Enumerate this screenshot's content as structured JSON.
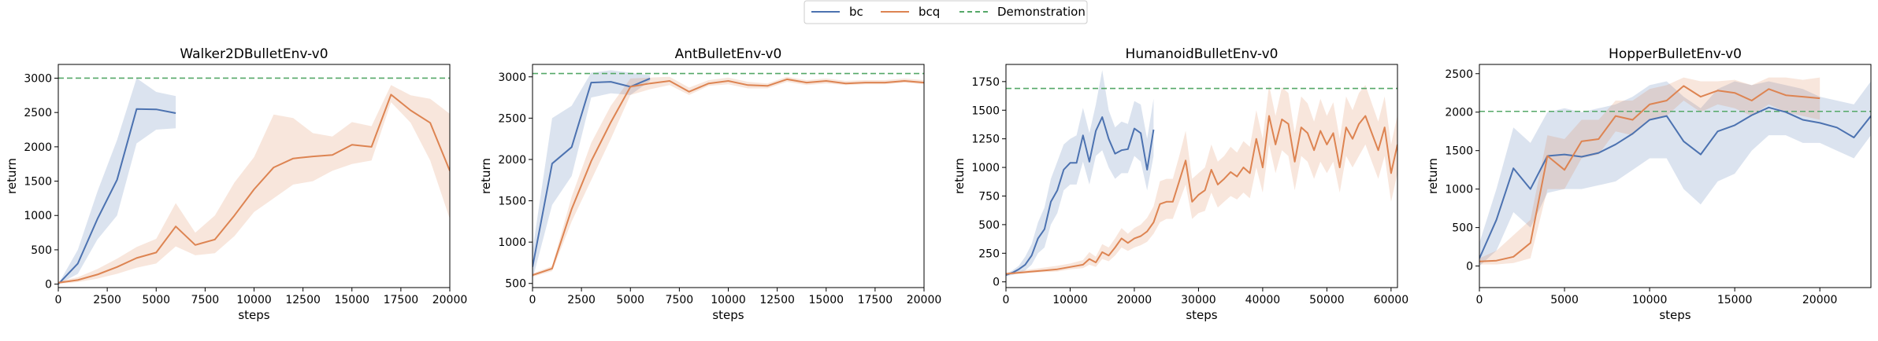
{
  "legend": {
    "placement": "top-center",
    "entries": [
      {
        "name": "bc",
        "color": "#4c72b0",
        "style": "solid"
      },
      {
        "name": "bcq",
        "color": "#dd8452",
        "style": "solid"
      },
      {
        "name": "Demonstration",
        "color": "#55a868",
        "style": "dashed"
      }
    ]
  },
  "chart_data": [
    {
      "type": "line",
      "title": "Walker2DBulletEnv-v0",
      "xlabel": "steps",
      "ylabel": "return",
      "xlim": [
        0,
        20000
      ],
      "ylim": [
        -50,
        3200
      ],
      "xticks": [
        0,
        2500,
        5000,
        7500,
        10000,
        12500,
        15000,
        17500,
        20000
      ],
      "yticks": [
        0,
        500,
        1000,
        1500,
        2000,
        2500,
        3000
      ],
      "grid": false,
      "demonstration": 3000,
      "series": [
        {
          "name": "bc",
          "x": [
            0,
            1000,
            2000,
            3000,
            4000,
            5000,
            6000
          ],
          "y": [
            0,
            300,
            950,
            1520,
            2550,
            2545,
            2490
          ],
          "lower": [
            0,
            150,
            650,
            1000,
            2050,
            2250,
            2270
          ],
          "upper": [
            0,
            500,
            1350,
            2100,
            3000,
            2800,
            2740
          ]
        },
        {
          "name": "bcq",
          "x": [
            0,
            1000,
            2000,
            3000,
            4000,
            5000,
            6000,
            7000,
            8000,
            9000,
            10000,
            11000,
            12000,
            13000,
            14000,
            15000,
            16000,
            17000,
            18000,
            19000,
            20000
          ],
          "y": [
            20,
            60,
            140,
            250,
            380,
            460,
            840,
            570,
            650,
            1000,
            1380,
            1700,
            1830,
            1860,
            1880,
            2030,
            2000,
            2760,
            2530,
            2350,
            1650
          ],
          "lower": [
            5,
            30,
            80,
            150,
            240,
            300,
            550,
            420,
            450,
            700,
            1050,
            1250,
            1450,
            1500,
            1650,
            1750,
            1800,
            2650,
            2350,
            1800,
            950
          ],
          "upper": [
            40,
            100,
            220,
            370,
            540,
            660,
            1180,
            750,
            1000,
            1480,
            1850,
            2470,
            2420,
            2200,
            2150,
            2360,
            2300,
            2900,
            2750,
            2700,
            2480
          ]
        }
      ]
    },
    {
      "type": "line",
      "title": "AntBulletEnv-v0",
      "xlabel": "steps",
      "ylabel": "return",
      "xlim": [
        0,
        20000
      ],
      "ylim": [
        450,
        3150
      ],
      "xticks": [
        0,
        2500,
        5000,
        7500,
        10000,
        12500,
        15000,
        17500,
        20000
      ],
      "yticks": [
        500,
        1000,
        1500,
        2000,
        2500,
        3000
      ],
      "grid": false,
      "demonstration": 3040,
      "series": [
        {
          "name": "bc",
          "x": [
            0,
            1000,
            2000,
            3000,
            4000,
            5000,
            6000
          ],
          "y": [
            700,
            1950,
            2150,
            2930,
            2940,
            2880,
            2980
          ],
          "lower": [
            550,
            1450,
            1800,
            2750,
            2800,
            2780,
            2950
          ],
          "upper": [
            900,
            2500,
            2650,
            3050,
            3080,
            3050,
            3020
          ]
        },
        {
          "name": "bcq",
          "x": [
            0,
            1000,
            2000,
            3000,
            4000,
            5000,
            6000,
            7000,
            8000,
            9000,
            10000,
            11000,
            12000,
            13000,
            14000,
            15000,
            16000,
            17000,
            18000,
            19000,
            20000
          ],
          "y": [
            600,
            680,
            1400,
            1980,
            2450,
            2880,
            2920,
            2950,
            2820,
            2920,
            2950,
            2900,
            2890,
            2970,
            2930,
            2950,
            2920,
            2930,
            2930,
            2950,
            2930
          ],
          "lower": [
            580,
            650,
            1250,
            1750,
            2250,
            2780,
            2850,
            2900,
            2780,
            2890,
            2910,
            2860,
            2860,
            2940,
            2900,
            2920,
            2900,
            2910,
            2910,
            2930,
            2910
          ],
          "upper": [
            620,
            710,
            1550,
            2200,
            2650,
            2980,
            2990,
            3000,
            2870,
            2960,
            2990,
            2940,
            2920,
            3000,
            2960,
            2980,
            2950,
            2960,
            2960,
            2980,
            2960
          ]
        }
      ]
    },
    {
      "type": "line",
      "title": "HumanoidBulletEnv-v0",
      "xlabel": "steps",
      "ylabel": "return",
      "xlim": [
        0,
        61000
      ],
      "ylim": [
        -50,
        1900
      ],
      "xticks": [
        0,
        10000,
        20000,
        30000,
        40000,
        50000,
        60000
      ],
      "yticks": [
        0,
        250,
        500,
        750,
        1000,
        1250,
        1500,
        1750
      ],
      "grid": false,
      "demonstration": 1690,
      "series": [
        {
          "name": "bc",
          "x": [
            0,
            1000,
            2000,
            3000,
            4000,
            5000,
            6000,
            7000,
            8000,
            9000,
            10000,
            11000,
            12000,
            13000,
            14000,
            15000,
            16000,
            17000,
            18000,
            19000,
            20000,
            21000,
            22000,
            23000
          ],
          "y": [
            60,
            80,
            110,
            150,
            230,
            380,
            460,
            700,
            800,
            980,
            1040,
            1040,
            1280,
            1050,
            1320,
            1440,
            1250,
            1120,
            1150,
            1160,
            1340,
            1300,
            980,
            1330
          ],
          "lower": [
            50,
            60,
            80,
            100,
            150,
            250,
            300,
            500,
            600,
            800,
            850,
            850,
            1050,
            850,
            1100,
            1150,
            1000,
            900,
            950,
            950,
            1100,
            1050,
            800,
            1100
          ],
          "upper": [
            70,
            100,
            140,
            220,
            330,
            520,
            650,
            900,
            1050,
            1200,
            1250,
            1280,
            1520,
            1300,
            1550,
            1850,
            1500,
            1350,
            1400,
            1380,
            1580,
            1550,
            1250,
            1600
          ]
        },
        {
          "name": "bcq",
          "x": [
            0,
            2000,
            4000,
            6000,
            8000,
            10000,
            12000,
            13000,
            14000,
            15000,
            16000,
            17000,
            18000,
            19000,
            20000,
            21000,
            22000,
            23000,
            24000,
            25000,
            26000,
            27000,
            28000,
            29000,
            30000,
            31000,
            32000,
            33000,
            34000,
            35000,
            36000,
            37000,
            38000,
            39000,
            40000,
            41000,
            42000,
            43000,
            44000,
            45000,
            46000,
            47000,
            48000,
            49000,
            50000,
            51000,
            52000,
            53000,
            54000,
            55000,
            56000,
            57000,
            58000,
            59000,
            60000,
            61000
          ],
          "y": [
            70,
            80,
            90,
            100,
            110,
            130,
            150,
            200,
            170,
            260,
            230,
            300,
            380,
            340,
            380,
            400,
            440,
            520,
            680,
            700,
            700,
            880,
            1060,
            700,
            760,
            800,
            980,
            850,
            900,
            960,
            920,
            1000,
            950,
            1250,
            1000,
            1450,
            1200,
            1420,
            1380,
            1050,
            1350,
            1300,
            1150,
            1320,
            1200,
            1300,
            1000,
            1350,
            1250,
            1380,
            1450,
            1300,
            1150,
            1350,
            950,
            1200
          ],
          "lower": [
            60,
            70,
            80,
            85,
            90,
            110,
            120,
            150,
            130,
            200,
            180,
            230,
            300,
            270,
            300,
            320,
            350,
            420,
            520,
            550,
            550,
            700,
            850,
            550,
            600,
            620,
            780,
            650,
            700,
            750,
            720,
            780,
            730,
            1000,
            780,
            1200,
            950,
            1150,
            1100,
            800,
            1100,
            1050,
            900,
            1050,
            950,
            1050,
            780,
            1100,
            1000,
            1100,
            1200,
            1050,
            900,
            1100,
            700,
            950
          ],
          "upper": [
            80,
            95,
            110,
            125,
            140,
            160,
            190,
            260,
            220,
            330,
            300,
            380,
            470,
            420,
            470,
            500,
            560,
            660,
            880,
            900,
            900,
            1100,
            1320,
            900,
            950,
            1000,
            1200,
            1050,
            1100,
            1180,
            1130,
            1230,
            1180,
            1500,
            1250,
            1720,
            1450,
            1700,
            1650,
            1300,
            1620,
            1560,
            1400,
            1600,
            1450,
            1570,
            1250,
            1620,
            1500,
            1650,
            1720,
            1560,
            1400,
            1620,
            1200,
            1460
          ]
        }
      ]
    },
    {
      "type": "line",
      "title": "HopperBulletEnv-v0",
      "xlabel": "steps",
      "ylabel": "return",
      "xlim": [
        0,
        23000
      ],
      "ylim": [
        -280,
        2620
      ],
      "xticks": [
        0,
        5000,
        10000,
        15000,
        20000
      ],
      "yticks": [
        0,
        500,
        1000,
        1500,
        2000,
        2500
      ],
      "grid": false,
      "demonstration": 2010,
      "series": [
        {
          "name": "bc",
          "x": [
            0,
            1000,
            2000,
            3000,
            4000,
            5000,
            6000,
            7000,
            8000,
            9000,
            10000,
            11000,
            12000,
            13000,
            14000,
            15000,
            16000,
            17000,
            18000,
            19000,
            20000,
            21000,
            22000,
            23000
          ],
          "y": [
            100,
            600,
            1270,
            1000,
            1430,
            1450,
            1420,
            1470,
            1580,
            1720,
            1900,
            1950,
            1620,
            1450,
            1750,
            1830,
            1960,
            2060,
            2000,
            1900,
            1860,
            1800,
            1670,
            1950
          ],
          "lower": [
            0,
            200,
            700,
            500,
            950,
            1000,
            1000,
            1050,
            1100,
            1250,
            1400,
            1400,
            1000,
            800,
            1100,
            1200,
            1500,
            1700,
            1700,
            1600,
            1600,
            1500,
            1400,
            1700
          ],
          "upper": [
            300,
            1000,
            1800,
            1600,
            2000,
            2050,
            2000,
            2050,
            2100,
            2200,
            2350,
            2400,
            2200,
            2050,
            2300,
            2400,
            2350,
            2400,
            2350,
            2300,
            2200,
            2150,
            2100,
            2400
          ]
        },
        {
          "name": "bcq",
          "x": [
            0,
            1000,
            2000,
            3000,
            4000,
            5000,
            6000,
            7000,
            8000,
            9000,
            10000,
            11000,
            12000,
            13000,
            14000,
            15000,
            16000,
            17000,
            18000,
            19000,
            20000
          ],
          "y": [
            60,
            70,
            120,
            300,
            1430,
            1250,
            1620,
            1650,
            1950,
            1900,
            2100,
            2150,
            2340,
            2200,
            2280,
            2250,
            2150,
            2300,
            2220,
            2200,
            2180
          ],
          "lower": [
            20,
            20,
            40,
            100,
            1000,
            1000,
            1400,
            1450,
            1750,
            1700,
            1900,
            1950,
            2150,
            2000,
            2100,
            2050,
            1950,
            2100,
            2000,
            1950,
            1900
          ],
          "upper": [
            100,
            200,
            400,
            600,
            1700,
            1650,
            1900,
            1900,
            2150,
            2150,
            2300,
            2350,
            2450,
            2400,
            2400,
            2420,
            2350,
            2450,
            2450,
            2420,
            2450
          ]
        }
      ]
    }
  ]
}
